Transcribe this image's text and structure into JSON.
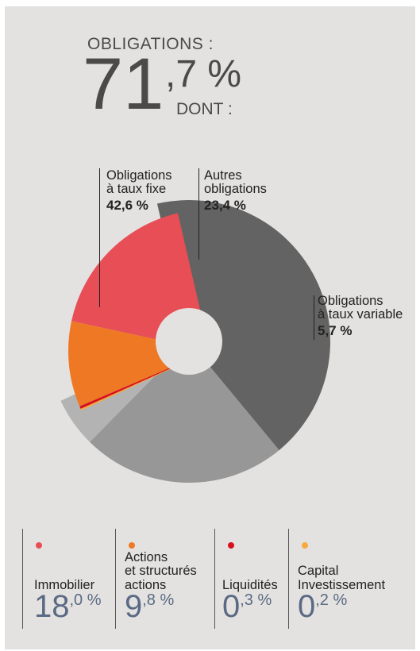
{
  "header": {
    "label": "OBLIGATIONS  :",
    "value_int": "71",
    "value_dec": ",7 %",
    "dont": "DONT  :"
  },
  "chart_data": {
    "type": "pie",
    "slices": [
      {
        "name": "Obligations\nà taux fixe",
        "value": 42.6,
        "value_label": "42,6 %",
        "color": "#636363"
      },
      {
        "name": "Autres\nobligations",
        "value": 23.4,
        "value_label": "23,4 %",
        "color": "#979797"
      },
      {
        "name": "Obligations\nà taux variable",
        "value": 5.7,
        "value_label": "5,7 %",
        "color": "#b3b3b3"
      },
      {
        "name": "Capital\nInvestissement",
        "value": 0.2,
        "color": "#f6aa3c"
      },
      {
        "name": "Liquidités",
        "value": 0.3,
        "color": "#d8101e"
      },
      {
        "name": "Actions\net structurés\nactions",
        "value": 9.8,
        "color": "#ee7824"
      },
      {
        "name": "Immobilier",
        "value": 18.0,
        "color": "#e84e55"
      }
    ]
  },
  "legend": [
    {
      "name": "Immobilier",
      "int": "18",
      "dec": ",0 %",
      "color": "#e84e55"
    },
    {
      "name": "Actions\net structurés\nactions",
      "int": "9",
      "dec": ",8 %",
      "color": "#ee7824"
    },
    {
      "name": "Liquidités",
      "int": "0",
      "dec": ",3 %",
      "color": "#d8101e"
    },
    {
      "name": "Capital\nInvestissement",
      "int": "0",
      "dec": ",2 %",
      "color": "#f6aa3c"
    }
  ]
}
